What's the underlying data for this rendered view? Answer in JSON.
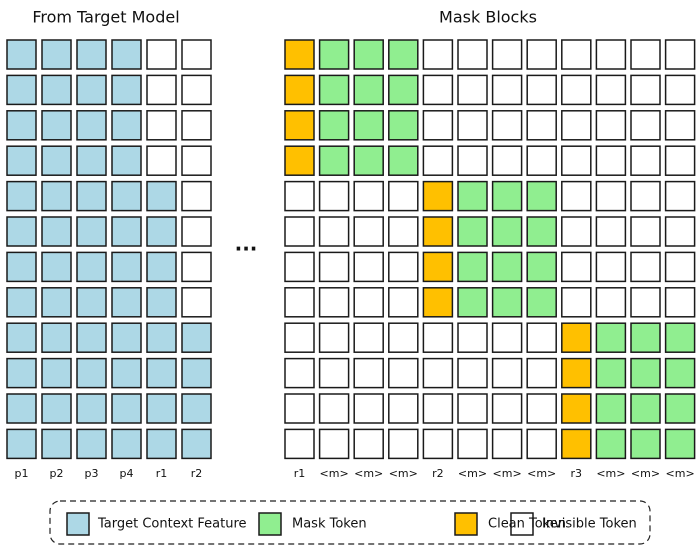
{
  "left": {
    "title": "From Target Model",
    "columns": [
      "p1",
      "p2",
      "p3",
      "p4",
      "r1",
      "r2"
    ]
  },
  "ellipsis": "···",
  "right": {
    "title": "Mask Blocks",
    "columns": [
      "r1",
      "<m>",
      "<m>",
      "<m>",
      "r2",
      "<m>",
      "<m>",
      "<m>",
      "r3",
      "<m>",
      "<m>",
      "<m>"
    ]
  },
  "legend": [
    {
      "label": "Target Context Feature"
    },
    {
      "label": "Mask Token"
    },
    {
      "label": "Clean Token"
    },
    {
      "label": "Invisible Token"
    }
  ]
}
